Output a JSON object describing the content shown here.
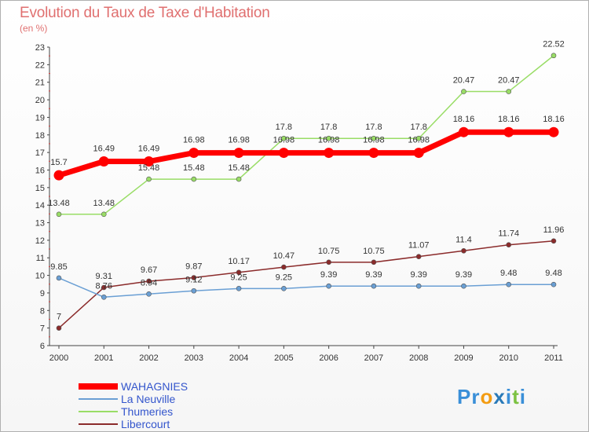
{
  "title": "Evolution du Taux de Taxe d'Habitation",
  "subtitle": "(en %)",
  "logo_text": "Proxiti",
  "chart_data": {
    "type": "line",
    "title": "Evolution du Taux de Taxe d'Habitation",
    "ylabel": "(en %)",
    "xlabel": "",
    "categories": [
      "2000",
      "2001",
      "2002",
      "2003",
      "2004",
      "2005",
      "2006",
      "2007",
      "2008",
      "2009",
      "2010",
      "2011"
    ],
    "ylim": [
      6,
      23
    ],
    "yticks": [
      6,
      7,
      8,
      9,
      10,
      11,
      12,
      13,
      14,
      15,
      16,
      17,
      18,
      19,
      20,
      21,
      22,
      23
    ],
    "grid": false,
    "legend_position": "bottom-left",
    "series": [
      {
        "name": "WAHAGNIES",
        "color": "#ff0000",
        "values": [
          15.7,
          16.49,
          16.49,
          16.98,
          16.98,
          16.98,
          16.98,
          16.98,
          16.98,
          18.16,
          18.16,
          18.16
        ],
        "labels": [
          "15.7",
          "16.49",
          "16.49",
          "16.98",
          "16.98",
          "16.98",
          "16.98",
          "16.98",
          "16.98",
          "18.16",
          "18.16",
          "18.16"
        ]
      },
      {
        "name": "La Neuville",
        "color": "#6a9fd4",
        "values": [
          9.85,
          8.76,
          8.94,
          9.12,
          9.25,
          9.25,
          9.39,
          9.39,
          9.39,
          9.39,
          9.48,
          9.48
        ],
        "labels": [
          "9.85",
          "8.76",
          "8.94",
          "9.12",
          "9.25",
          "9.25",
          "9.39",
          "9.39",
          "9.39",
          "9.39",
          "9.48",
          "9.48"
        ]
      },
      {
        "name": "Thumeries",
        "color": "#99dd66",
        "values": [
          13.48,
          13.48,
          15.48,
          15.48,
          15.48,
          17.8,
          17.8,
          17.8,
          17.8,
          20.47,
          20.47,
          22.52
        ],
        "labels": [
          "13.48",
          "13.48",
          "15.48",
          "15.48",
          "15.48",
          "17.8",
          "17.8",
          "17.8",
          "17.8",
          "20.47",
          "20.47",
          "22.52"
        ]
      },
      {
        "name": "Libercourt",
        "color": "#8b2b2b",
        "values": [
          7,
          9.31,
          9.67,
          9.87,
          10.17,
          10.47,
          10.75,
          10.75,
          11.07,
          11.4,
          11.74,
          11.96
        ],
        "labels": [
          "7",
          "9.31",
          "9.67",
          "9.87",
          "10.17",
          "10.47",
          "10.75",
          "10.75",
          "11.07",
          "11.4",
          "11.74",
          "11.96"
        ]
      }
    ]
  }
}
